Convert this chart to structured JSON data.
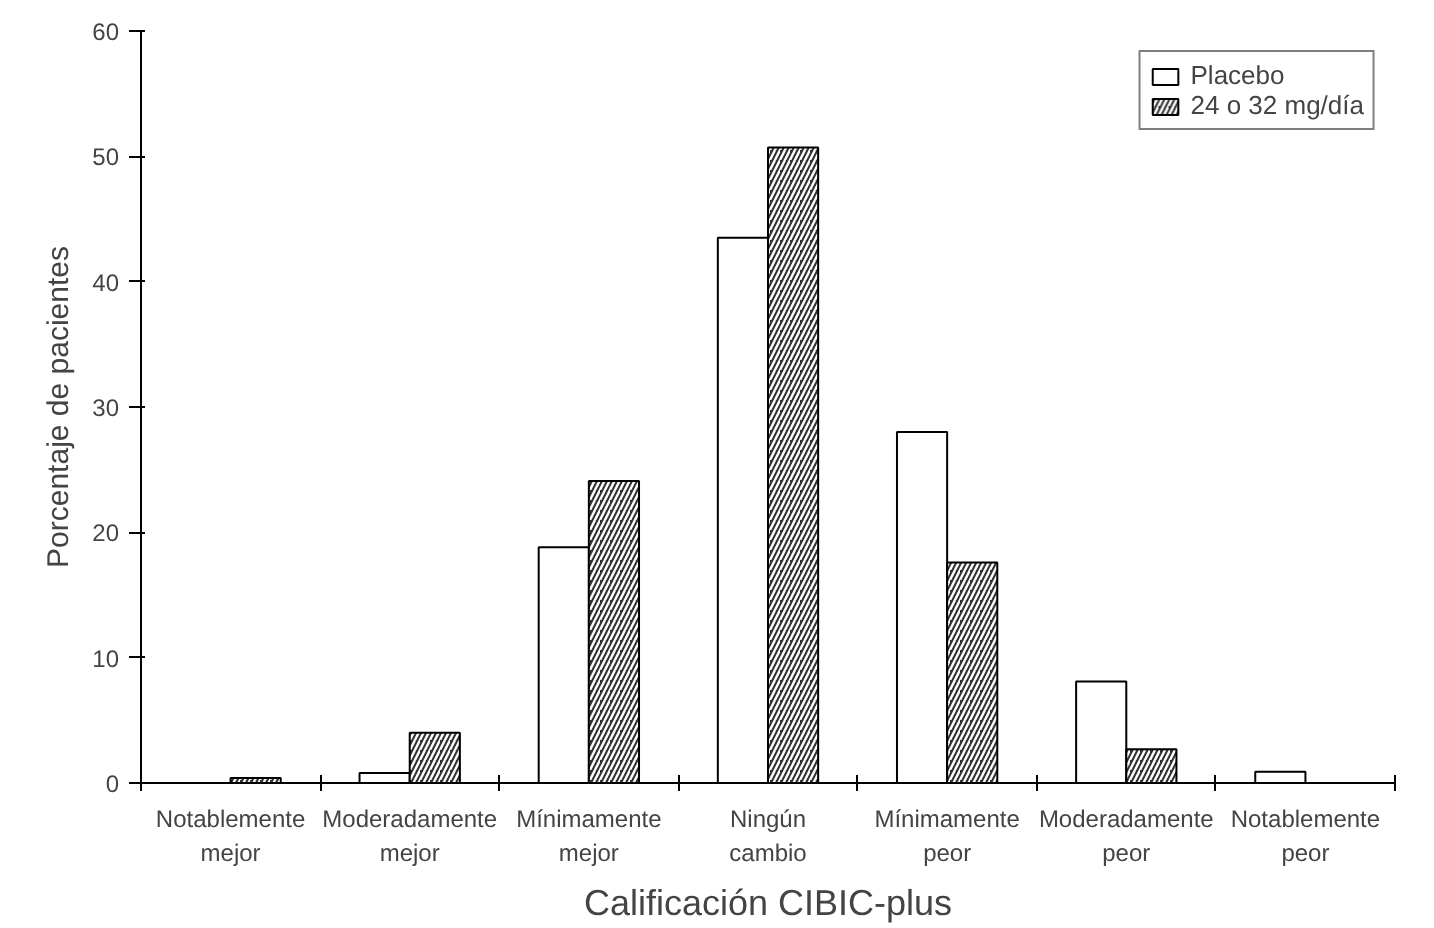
{
  "chart_data": {
    "type": "bar",
    "xlabel": "Calificación CIBIC-plus",
    "ylabel": "Porcentaje de pacientes",
    "categories": [
      "Notablemente mejor",
      "Moderadamente mejor",
      "Mínimamente mejor",
      "Ningún cambio",
      "Mínimamente peor",
      "Moderadamente peor",
      "Notablemente peor"
    ],
    "series": [
      {
        "name": "Placebo",
        "color": "#ffffff",
        "values": [
          null,
          0.8,
          18.8,
          43.5,
          28.0,
          8.1,
          0.9
        ]
      },
      {
        "name": "24 o 32 mg/día",
        "color": "#333333",
        "values": [
          0.4,
          4.0,
          24.1,
          50.7,
          17.6,
          2.7,
          null
        ]
      }
    ],
    "ylim": [
      0,
      60
    ],
    "yticks": [
      0,
      10,
      20,
      30,
      40,
      50,
      60
    ],
    "legend": "top right"
  }
}
